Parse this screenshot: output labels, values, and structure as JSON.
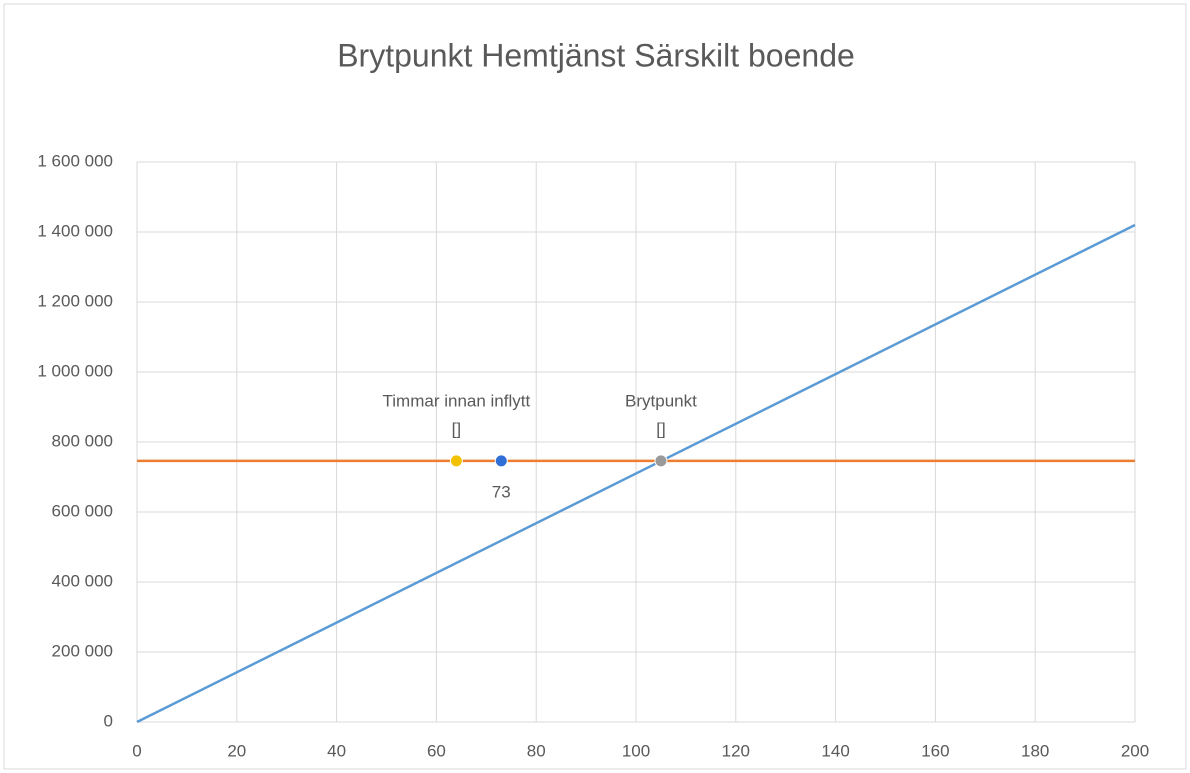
{
  "chart_data": {
    "type": "line",
    "title": "Brytpunkt Hemtjänst Särskilt boende",
    "xlim": [
      0,
      200
    ],
    "xticks": [
      0,
      20,
      40,
      60,
      80,
      100,
      120,
      140,
      160,
      180,
      200
    ],
    "ylim": [
      0,
      1600000
    ],
    "yticks": [
      0,
      {
        "value": 200000,
        "label": "200 000"
      },
      {
        "value": 400000,
        "label": "400 000"
      },
      {
        "value": 600000,
        "label": "600 000"
      },
      {
        "value": 800000,
        "label": "800 000"
      },
      {
        "value": 1000000,
        "label": "1 000 000"
      },
      {
        "value": 1200000,
        "label": "1 200 000"
      },
      {
        "value": 1400000,
        "label": "1 400 000"
      },
      {
        "value": 1600000,
        "label": "1 600 000"
      }
    ],
    "grid": true,
    "series": [
      {
        "color": "#5b9bd5",
        "x": [
          0,
          200
        ],
        "values": [
          0,
          1420000
        ]
      },
      {
        "color": "#ed7d31",
        "x": [
          0,
          200
        ],
        "values": [
          746000,
          746000
        ]
      }
    ],
    "points": [
      {
        "label": "Timmar innan inflytt",
        "value_label": "[]",
        "x": 64,
        "y": 746000,
        "color": "#f2c200"
      },
      {
        "label": "73",
        "x": 73,
        "y": 746000,
        "color": "#2f6fd6"
      },
      {
        "label": "Brytpunkt",
        "value_label": "[]",
        "x": 105,
        "y": 746000,
        "color": "#9a9a9a"
      }
    ]
  }
}
